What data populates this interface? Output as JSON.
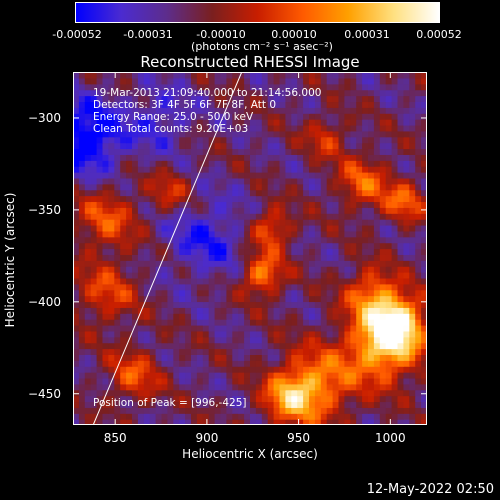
{
  "colorbar": {
    "ticks": [
      "-0.00052",
      "-0.00031",
      "-0.00010",
      "0.00010",
      "0.00031",
      "0.00052"
    ],
    "units_label": "(photons cm⁻² s⁻¹ asec⁻²)"
  },
  "header": {
    "title": "Reconstructed RHESSI Image"
  },
  "annotations": {
    "time_range": "19-Mar-2013 21:09:40.000 to 21:14:56.000",
    "detectors": "Detectors: 3F 4F 5F 6F 7F 8F, Att 0",
    "energy_range": "Energy Range: 25.0 - 50.0 keV",
    "clean_counts": "Clean     Total counts: 9.20E+03",
    "peak_position": "Position of Peak = [996,-425]"
  },
  "footer": {
    "date": "12-May-2022 02:50"
  },
  "chart_data": {
    "type": "heatmap",
    "title": "Reconstructed RHESSI Image",
    "xlabel": "Heliocentric X (arcsec)",
    "ylabel": "Heliocentric Y (arcsec)",
    "xlim": [
      827,
      1020
    ],
    "ylim": [
      -467,
      -275
    ],
    "x_ticks": [
      850,
      900,
      950,
      1000
    ],
    "y_ticks": [
      -300,
      -350,
      -400,
      -450
    ],
    "colorbar_range": [
      -0.00052,
      0.00052
    ],
    "colormap": [
      "#0000ff",
      "#4b2bd0",
      "#5d2d8c",
      "#7a1f1f",
      "#c81e00",
      "#ff5a00",
      "#ffa000",
      "#ffe080",
      "#ffffff"
    ],
    "limb_line": {
      "x": [
        838,
        919
      ],
      "y": [
        -467,
        -275
      ]
    },
    "bright_sources": [
      {
        "x": 996,
        "y": -423,
        "amplitude": 1.0,
        "width": 14
      },
      {
        "x": 1005,
        "y": -410,
        "amplitude": 0.85,
        "width": 10
      },
      {
        "x": 990,
        "y": -395,
        "amplitude": 0.6,
        "width": 10
      },
      {
        "x": 960,
        "y": -445,
        "amplitude": 0.7,
        "width": 14
      },
      {
        "x": 945,
        "y": -452,
        "amplitude": 0.65,
        "width": 10
      },
      {
        "x": 930,
        "y": -385,
        "amplitude": 0.75,
        "width": 8
      },
      {
        "x": 935,
        "y": -360,
        "amplitude": 0.6,
        "width": 8
      },
      {
        "x": 985,
        "y": -335,
        "amplitude": 0.55,
        "width": 10
      },
      {
        "x": 1008,
        "y": -345,
        "amplitude": 0.55,
        "width": 8
      },
      {
        "x": 845,
        "y": -355,
        "amplitude": 0.5,
        "width": 12
      },
      {
        "x": 845,
        "y": -395,
        "amplitude": 0.45,
        "width": 12
      },
      {
        "x": 860,
        "y": -440,
        "amplitude": 0.5,
        "width": 10
      },
      {
        "x": 880,
        "y": -340,
        "amplitude": 0.4,
        "width": 8
      },
      {
        "x": 965,
        "y": -310,
        "amplitude": 0.4,
        "width": 8
      }
    ],
    "cool_regions": [
      {
        "x": 835,
        "y": -310,
        "amplitude": -0.7,
        "width": 14
      },
      {
        "x": 900,
        "y": -365,
        "amplitude": -0.4,
        "width": 16
      },
      {
        "x": 875,
        "y": -300,
        "amplitude": -0.35,
        "width": 12
      }
    ]
  }
}
